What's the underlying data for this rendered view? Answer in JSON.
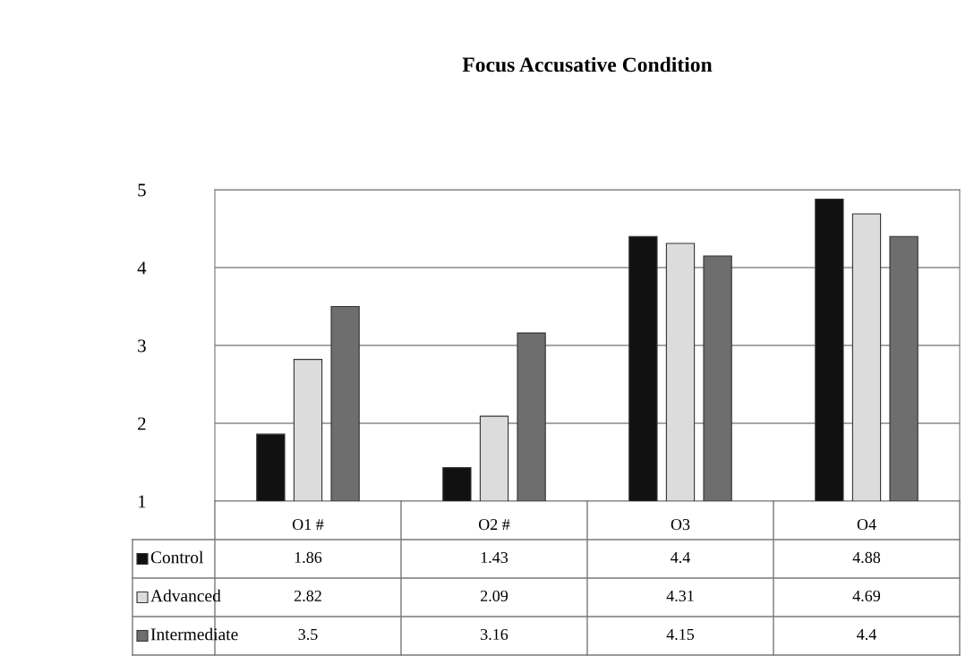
{
  "chart_data": {
    "type": "bar",
    "title": "Focus Accusative Condition",
    "categories": [
      "O1 #",
      "O2 #",
      "O3",
      "O4"
    ],
    "series": [
      {
        "name": "Control",
        "color": "#111111",
        "values": [
          1.86,
          1.43,
          4.4,
          4.88
        ]
      },
      {
        "name": "Advanced",
        "color": "#dcdcdc",
        "values": [
          2.82,
          2.09,
          4.31,
          4.69
        ]
      },
      {
        "name": "Intermediate",
        "color": "#6e6e6e",
        "values": [
          3.5,
          3.16,
          4.15,
          4.4
        ]
      }
    ],
    "ylim": [
      1,
      5
    ],
    "yticks": [
      1,
      2,
      3,
      4,
      5
    ],
    "grid": "y",
    "legend": "bottom",
    "data_labels": true
  }
}
